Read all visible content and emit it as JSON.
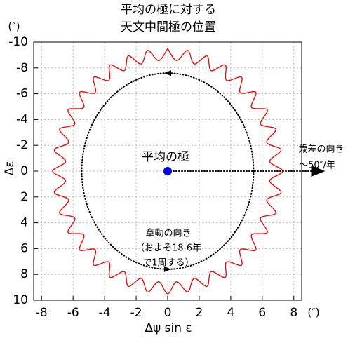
{
  "chart_data": {
    "type": "line",
    "title": [
      "平均の極に対する",
      "天文中間極の位置"
    ],
    "x_label": "Δψ sin ε",
    "y_label": "Δε",
    "x_unit": "(″)",
    "y_unit": "(″)",
    "xlim": [
      -8.5,
      8.5
    ],
    "ylim": [
      -10,
      10
    ],
    "y_inverted": true,
    "xticks": [
      -8,
      -6,
      -4,
      -2,
      0,
      2,
      4,
      6,
      8
    ],
    "yticks": [
      -10,
      -8,
      -6,
      -4,
      -2,
      0,
      2,
      4,
      6,
      8,
      10
    ],
    "grid": true,
    "series": [
      {
        "color": "#ff0000",
        "x": [
          0,
          0.57,
          1.27,
          1.68,
          2.5,
          2.75,
          3.65,
          3.73,
          4.69,
          4.6,
          5.59,
          5.32,
          6.32,
          5.89,
          6.86,
          6.28,
          7.19,
          6.47,
          7.3,
          6.47,
          7.19,
          6.28,
          6.86,
          5.89,
          6.32,
          5.32,
          5.59,
          4.6,
          4.69,
          3.73,
          3.65,
          2.75,
          2.5,
          1.68,
          1.27,
          0.57,
          0,
          -0.57,
          -1.27,
          -1.68,
          -2.5,
          -2.75,
          -3.65,
          -3.73,
          -4.69,
          -4.6,
          -5.59,
          -5.32,
          -6.32,
          -5.89,
          -6.86,
          -6.28,
          -7.19,
          -6.47,
          -7.3,
          -6.47,
          -7.19,
          -6.28,
          -6.86,
          -5.89,
          -6.32,
          -5.32,
          -5.59,
          -4.6,
          -4.69,
          -3.73,
          -3.65,
          -2.75,
          -2.5,
          -1.68,
          -1.27,
          -0.57,
          0
        ],
        "y": [
          -9.5,
          -8.57,
          -9.36,
          -8.31,
          -8.93,
          -7.79,
          -8.23,
          -7.04,
          -7.28,
          -6.08,
          -6.11,
          -4.94,
          -4.75,
          -3.64,
          -3.25,
          -2.23,
          -1.65,
          -0.75,
          0,
          0.75,
          1.65,
          2.23,
          3.25,
          3.64,
          4.75,
          4.94,
          6.11,
          6.08,
          7.28,
          7.04,
          8.23,
          7.79,
          8.93,
          8.31,
          9.36,
          8.57,
          9.5,
          8.57,
          9.36,
          8.31,
          8.93,
          7.79,
          8.23,
          7.04,
          7.28,
          6.08,
          6.11,
          4.94,
          4.75,
          3.64,
          3.25,
          2.23,
          1.65,
          0.75,
          0,
          -0.75,
          -1.65,
          -2.23,
          -3.25,
          -3.64,
          -4.75,
          -4.94,
          -6.11,
          -6.08,
          -7.28,
          -7.04,
          -8.23,
          -7.79,
          -8.93,
          -8.31,
          -9.36,
          -8.57,
          -9.5
        ]
      }
    ],
    "nutation_ellipse": {
      "rx": 5.45,
      "ry": 7.6
    },
    "mean_pole": {
      "x": 0,
      "y": 0,
      "color": "#0000ee",
      "label": "平均の極"
    },
    "precession_arrow": {
      "x_end": 9.9,
      "label": [
        "歳差の向き",
        "〜50″/年"
      ]
    },
    "nutation_label": [
      "章動の向き",
      "（およそ18.6年",
      "で1周する）"
    ]
  }
}
